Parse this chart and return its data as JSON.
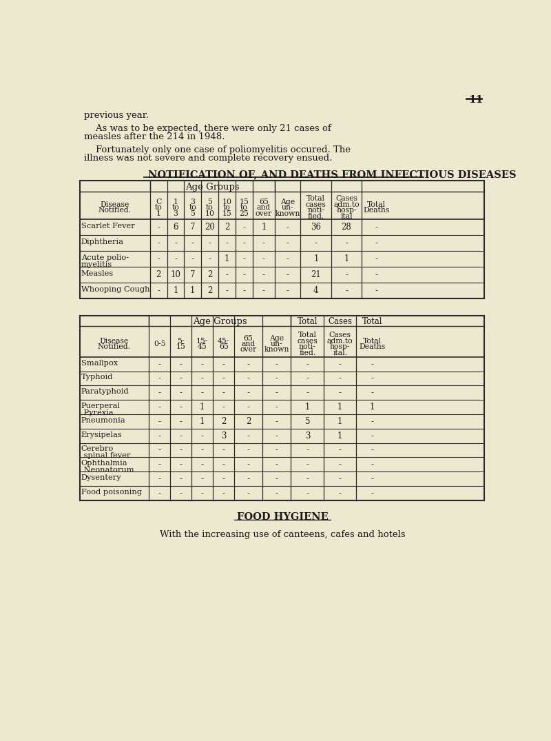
{
  "bg_color": "#ede8d0",
  "page_number": "11",
  "intro_text_line1": "previous year.",
  "intro_text_line2": "    As was to be expected, there were only 21 cases of",
  "intro_text_line3": "measles after the 214 in 1948.",
  "intro_text_line4": "    Fortunately only one case of poliomyelitis occured. The",
  "intro_text_line5": "illness was not severe and complete recovery ensued.",
  "table1_title": "NOTIFICATION OF, AND DEATHS FROM INFECTIOUS DISEASES",
  "table1_rows": [
    [
      "Scarlet Fever",
      "-",
      "6",
      "7",
      "20",
      "2",
      "-",
      "1",
      "-",
      "36",
      "28",
      "-"
    ],
    [
      "Diphtheria",
      "-",
      "-",
      "-",
      "-",
      "-",
      "-",
      "-",
      "-",
      "-",
      "-",
      "-"
    ],
    [
      "Acute polio-\nmyelitis",
      "-",
      "-",
      "-",
      "-",
      "1",
      "-",
      "-",
      "-",
      "1",
      "1",
      "-"
    ],
    [
      "Measles",
      "2",
      "10",
      "7",
      "2",
      "-",
      "-",
      "-",
      "-",
      "21",
      "-",
      "-"
    ],
    [
      "Whooping Cough",
      "-",
      "1",
      "1",
      "2",
      "-",
      "-",
      "-",
      "-",
      "4",
      "-",
      "-"
    ]
  ],
  "table2_rows": [
    [
      "Smallpox",
      "-",
      "-",
      "-",
      "-",
      "-",
      "-",
      "-",
      "-",
      "-"
    ],
    [
      "Typhoid",
      "-",
      "-",
      "-",
      "-",
      "-",
      "-",
      "-",
      "-",
      "-"
    ],
    [
      "Paratyphoid",
      "-",
      "-",
      "-",
      "-",
      "-",
      "-",
      "-",
      "-",
      "-"
    ],
    [
      "Puerperal\n Pyrexia",
      "-",
      "-",
      "1",
      "-",
      "-",
      "-",
      "1",
      "1",
      "1"
    ],
    [
      "Pneumonia",
      "-",
      "-",
      "1",
      "2",
      "2",
      "-",
      "5",
      "1",
      "-"
    ],
    [
      "Erysipelas",
      "-",
      "-",
      "-",
      "3",
      "-",
      "-",
      "3",
      "1",
      "-"
    ],
    [
      "Cerebro\n spinal fever",
      "-",
      "-",
      "-",
      "-",
      "-",
      "-",
      "-",
      "-",
      "-"
    ],
    [
      "Ophthalmia\n Neonatorum",
      "-",
      "-",
      "-",
      "-",
      "-",
      "-",
      "-",
      "-",
      "-"
    ],
    [
      "Dysentery",
      "-",
      "-",
      "-",
      "-",
      "-",
      "-",
      "-",
      "-",
      "-"
    ],
    [
      "Food poisoning",
      "-",
      "-",
      "-",
      "-",
      "-",
      "-",
      "-",
      "-",
      "-"
    ]
  ],
  "footer_text": "FOOD HYGIENE",
  "footer_line2": "With the increasing use of canteens, cafes and hotels"
}
